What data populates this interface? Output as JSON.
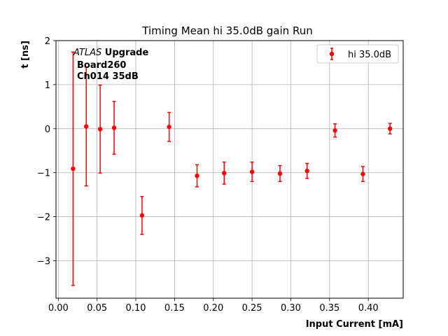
{
  "chart_data": {
    "type": "scatter",
    "title": "Timing Mean hi 35.0dB gain Run",
    "xlabel": "Input Current [mA]",
    "ylabel": "t [ns]",
    "xlim": [
      -0.003,
      0.445
    ],
    "ylim": [
      -3.85,
      2.0
    ],
    "xticks": [
      0.0,
      0.05,
      0.1,
      0.15,
      0.2,
      0.25,
      0.3,
      0.35,
      0.4
    ],
    "xtick_labels": [
      "0.00",
      "0.05",
      "0.10",
      "0.15",
      "0.20",
      "0.25",
      "0.30",
      "0.35",
      "0.40"
    ],
    "yticks": [
      -3,
      -2,
      -1,
      0,
      1,
      2
    ],
    "ytick_labels": [
      "−3",
      "−2",
      "−1",
      "0",
      "1",
      "2"
    ],
    "grid": true,
    "legend_position": "top-right",
    "annotation": {
      "atlas": "ATLAS",
      "upgrade": " Upgrade",
      "line2": "Board260",
      "line3": "Ch014 35dB"
    },
    "series": [
      {
        "name": "hi 35.0dB",
        "color": "#ff0000",
        "x": [
          0.019,
          0.036,
          0.054,
          0.072,
          0.108,
          0.143,
          0.179,
          0.214,
          0.25,
          0.286,
          0.321,
          0.357,
          0.393,
          0.428
        ],
        "y": [
          -0.91,
          0.05,
          -0.01,
          0.02,
          -1.97,
          0.04,
          -1.07,
          -1.01,
          -0.98,
          -1.02,
          -0.96,
          -0.04,
          -1.03,
          0.0
        ],
        "err": [
          2.65,
          1.35,
          1.0,
          0.6,
          0.43,
          0.33,
          0.25,
          0.25,
          0.22,
          0.18,
          0.17,
          0.15,
          0.17,
          0.12
        ]
      }
    ]
  }
}
